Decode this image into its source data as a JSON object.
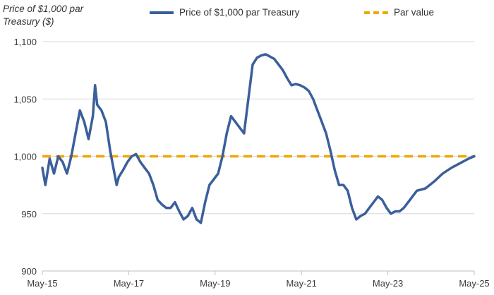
{
  "chart_data": {
    "type": "line",
    "ylabel_line1": "Price of $1,000 par",
    "ylabel_line2": "Treasury ($)",
    "xlabel": "",
    "x_tick_labels": [
      "May-15",
      "May-17",
      "May-19",
      "May-21",
      "May-23",
      "May-25"
    ],
    "y_ticks": [
      900,
      950,
      1000,
      1050,
      1100
    ],
    "y_tick_labels": [
      "900",
      "950",
      "1,000",
      "1,050",
      "1,100"
    ],
    "ylim": [
      900,
      1100
    ],
    "xlim": [
      2015.33,
      2025.33
    ],
    "grid": "horizontal",
    "legend_position": "top",
    "series": [
      {
        "name": "Price of $1,000 par Treasury",
        "color": "#3a5f9b",
        "style": "solid",
        "x": [
          2015.33,
          2015.4,
          2015.5,
          2015.6,
          2015.7,
          2015.8,
          2015.9,
          2016.0,
          2016.1,
          2016.2,
          2016.3,
          2016.4,
          2016.5,
          2016.55,
          2016.6,
          2016.7,
          2016.8,
          2016.9,
          2017.0,
          2017.05,
          2017.1,
          2017.2,
          2017.3,
          2017.4,
          2017.5,
          2017.6,
          2017.7,
          2017.8,
          2017.9,
          2018.0,
          2018.1,
          2018.2,
          2018.3,
          2018.4,
          2018.5,
          2018.6,
          2018.7,
          2018.8,
          2018.9,
          2019.0,
          2019.1,
          2019.2,
          2019.3,
          2019.4,
          2019.5,
          2019.6,
          2019.7,
          2019.8,
          2019.9,
          2020.0,
          2020.1,
          2020.2,
          2020.3,
          2020.4,
          2020.5,
          2020.6,
          2020.7,
          2020.8,
          2020.9,
          2021.0,
          2021.1,
          2021.2,
          2021.3,
          2021.4,
          2021.5,
          2021.6,
          2021.7,
          2021.8,
          2021.9,
          2022.0,
          2022.1,
          2022.2,
          2022.3,
          2022.4,
          2022.5,
          2022.6,
          2022.7,
          2022.8,
          2022.9,
          2023.0,
          2023.1,
          2023.2,
          2023.3,
          2023.4,
          2023.5,
          2023.6,
          2023.7,
          2023.8,
          2023.9,
          2024.0,
          2024.2,
          2024.4,
          2024.6,
          2024.8,
          2025.0,
          2025.2,
          2025.33
        ],
        "values": [
          990,
          975,
          998,
          985,
          1000,
          995,
          985,
          1000,
          1020,
          1040,
          1030,
          1015,
          1035,
          1062,
          1045,
          1040,
          1030,
          1005,
          985,
          975,
          982,
          988,
          995,
          1000,
          1002,
          995,
          990,
          985,
          975,
          962,
          958,
          955,
          955,
          960,
          952,
          945,
          948,
          955,
          945,
          942,
          960,
          975,
          980,
          985,
          1000,
          1020,
          1035,
          1030,
          1025,
          1020,
          1050,
          1080,
          1086,
          1088,
          1089,
          1087,
          1085,
          1080,
          1075,
          1068,
          1062,
          1063,
          1062,
          1060,
          1057,
          1050,
          1040,
          1030,
          1020,
          1005,
          988,
          975,
          975,
          970,
          955,
          945,
          948,
          950,
          955,
          960,
          965,
          962,
          955,
          950,
          952,
          952,
          955,
          960,
          965,
          970,
          972,
          978,
          985,
          990,
          994,
          998,
          1000
        ]
      },
      {
        "name": "Par value",
        "color": "#f0a800",
        "style": "dashed",
        "x": [
          2015.33,
          2025.33
        ],
        "values": [
          1000,
          1000
        ]
      }
    ]
  }
}
